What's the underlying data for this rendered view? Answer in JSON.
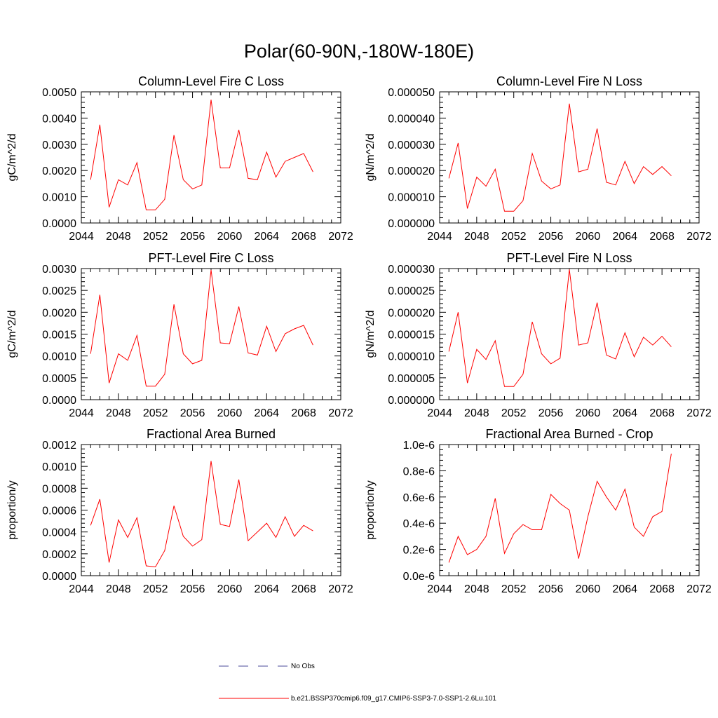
{
  "figure_title": "Polar(60-90N,-180W-180E)",
  "legend": {
    "entries": [
      {
        "label": "No Obs",
        "style": "dashed",
        "color": "#4a4a9a"
      },
      {
        "label": "b.e21.BSSP370cmip6.f09_g17.CMIP6-SSP3-7.0-SSP1-2.6Lu.101",
        "style": "solid",
        "color": "#ff0000"
      }
    ]
  },
  "chart_data": [
    {
      "type": "line",
      "title": "Column-Level Fire C Loss",
      "ylabel": "gC/m^2/d",
      "xlim": [
        2044,
        2072
      ],
      "ylim": [
        0,
        0.005
      ],
      "xticks": [
        "2044",
        "2048",
        "2052",
        "2056",
        "2060",
        "2064",
        "2068",
        "2072"
      ],
      "yticks": [
        "0.0000",
        "0.0010",
        "0.0020",
        "0.0030",
        "0.0040",
        "0.0050"
      ],
      "x": [
        2045,
        2046,
        2047,
        2048,
        2049,
        2050,
        2051,
        2052,
        2053,
        2054,
        2055,
        2056,
        2057,
        2058,
        2059,
        2060,
        2061,
        2062,
        2063,
        2064,
        2065,
        2066,
        2067,
        2068,
        2069
      ],
      "series": [
        {
          "color": "#ff0000",
          "values": [
            0.00165,
            0.00375,
            0.0006,
            0.00165,
            0.00145,
            0.0023,
            0.0005,
            0.0005,
            0.0009,
            0.00335,
            0.00165,
            0.0013,
            0.00145,
            0.0047,
            0.0021,
            0.0021,
            0.00355,
            0.0017,
            0.00165,
            0.0027,
            0.00175,
            0.00235,
            0.0025,
            0.00265,
            0.00195
          ]
        }
      ]
    },
    {
      "type": "line",
      "title": "Column-Level Fire N Loss",
      "ylabel": "gN/m^2/d",
      "xlim": [
        2044,
        2072
      ],
      "ylim": [
        0,
        5e-05
      ],
      "xticks": [
        "2044",
        "2048",
        "2052",
        "2056",
        "2060",
        "2064",
        "2068",
        "2072"
      ],
      "yticks": [
        "0.000000",
        "0.000010",
        "0.000020",
        "0.000030",
        "0.000040",
        "0.000050"
      ],
      "x": [
        2045,
        2046,
        2047,
        2048,
        2049,
        2050,
        2051,
        2052,
        2053,
        2054,
        2055,
        2056,
        2057,
        2058,
        2059,
        2060,
        2061,
        2062,
        2063,
        2064,
        2065,
        2066,
        2067,
        2068,
        2069
      ],
      "series": [
        {
          "color": "#ff0000",
          "values": [
            1.7e-05,
            3.05e-05,
            5.5e-06,
            1.75e-05,
            1.4e-05,
            2.05e-05,
            4.5e-06,
            4.5e-06,
            8.5e-06,
            2.65e-05,
            1.6e-05,
            1.3e-05,
            1.45e-05,
            4.55e-05,
            1.95e-05,
            2.05e-05,
            3.6e-05,
            1.55e-05,
            1.45e-05,
            2.35e-05,
            1.5e-05,
            2.15e-05,
            1.85e-05,
            2.15e-05,
            1.8e-05
          ]
        }
      ]
    },
    {
      "type": "line",
      "title": "PFT-Level Fire C Loss",
      "ylabel": "gC/m^2/d",
      "xlim": [
        2044,
        2072
      ],
      "ylim": [
        0,
        0.003
      ],
      "xticks": [
        "2044",
        "2048",
        "2052",
        "2056",
        "2060",
        "2064",
        "2068",
        "2072"
      ],
      "yticks": [
        "0.0000",
        "0.0005",
        "0.0010",
        "0.0015",
        "0.0020",
        "0.0025",
        "0.0030"
      ],
      "x": [
        2045,
        2046,
        2047,
        2048,
        2049,
        2050,
        2051,
        2052,
        2053,
        2054,
        2055,
        2056,
        2057,
        2058,
        2059,
        2060,
        2061,
        2062,
        2063,
        2064,
        2065,
        2066,
        2067,
        2068,
        2069
      ],
      "series": [
        {
          "color": "#ff0000",
          "values": [
            0.00105,
            0.0024,
            0.00038,
            0.00105,
            0.0009,
            0.00147,
            0.00031,
            0.00031,
            0.00058,
            0.00218,
            0.00105,
            0.00082,
            0.0009,
            0.00297,
            0.0013,
            0.00128,
            0.00213,
            0.00107,
            0.00102,
            0.00168,
            0.0011,
            0.00151,
            0.00162,
            0.0017,
            0.00125
          ]
        }
      ]
    },
    {
      "type": "line",
      "title": "PFT-Level Fire N Loss",
      "ylabel": "gN/m^2/d",
      "xlim": [
        2044,
        2072
      ],
      "ylim": [
        0,
        3e-05
      ],
      "xticks": [
        "2044",
        "2048",
        "2052",
        "2056",
        "2060",
        "2064",
        "2068",
        "2072"
      ],
      "yticks": [
        "0.000000",
        "0.000005",
        "0.000010",
        "0.000015",
        "0.000020",
        "0.000025",
        "0.000030"
      ],
      "x": [
        2045,
        2046,
        2047,
        2048,
        2049,
        2050,
        2051,
        2052,
        2053,
        2054,
        2055,
        2056,
        2057,
        2058,
        2059,
        2060,
        2061,
        2062,
        2063,
        2064,
        2065,
        2066,
        2067,
        2068,
        2069
      ],
      "series": [
        {
          "color": "#ff0000",
          "values": [
            1.1e-05,
            2e-05,
            3.8e-06,
            1.15e-05,
            9.2e-06,
            1.35e-05,
            3e-06,
            3e-06,
            5.8e-06,
            1.78e-05,
            1.05e-05,
            8.2e-06,
            9.5e-06,
            2.98e-05,
            1.25e-05,
            1.3e-05,
            2.22e-05,
            1.02e-05,
            9.3e-06,
            1.53e-05,
            9.8e-06,
            1.43e-05,
            1.25e-05,
            1.45e-05,
            1.21e-05
          ]
        }
      ]
    },
    {
      "type": "line",
      "title": "Fractional Area Burned",
      "ylabel": "proportion/y",
      "xlim": [
        2044,
        2072
      ],
      "ylim": [
        0,
        0.0012
      ],
      "xticks": [
        "2044",
        "2048",
        "2052",
        "2056",
        "2060",
        "2064",
        "2068",
        "2072"
      ],
      "yticks": [
        "0.0000",
        "0.0002",
        "0.0004",
        "0.0006",
        "0.0008",
        "0.0010",
        "0.0012"
      ],
      "x": [
        2045,
        2046,
        2047,
        2048,
        2049,
        2050,
        2051,
        2052,
        2053,
        2054,
        2055,
        2056,
        2057,
        2058,
        2059,
        2060,
        2061,
        2062,
        2063,
        2064,
        2065,
        2066,
        2067,
        2068,
        2069
      ],
      "series": [
        {
          "color": "#ff0000",
          "values": [
            0.00046,
            0.0007,
            0.00012,
            0.00051,
            0.00035,
            0.00053,
            9e-05,
            8e-05,
            0.00023,
            0.00064,
            0.00036,
            0.00027,
            0.00033,
            0.00105,
            0.00047,
            0.00045,
            0.00088,
            0.00032,
            0.0004,
            0.00048,
            0.00035,
            0.00054,
            0.00036,
            0.00046,
            0.00041
          ]
        }
      ]
    },
    {
      "type": "line",
      "title": "Fractional Area Burned - Crop",
      "ylabel": "proportion/y",
      "xlim": [
        2044,
        2072
      ],
      "ylim": [
        0,
        1e-06
      ],
      "xticks": [
        "2044",
        "2048",
        "2052",
        "2056",
        "2060",
        "2064",
        "2068",
        "2072"
      ],
      "yticks": [
        "0.0e-6",
        "0.2e-6",
        "0.4e-6",
        "0.6e-6",
        "0.8e-6",
        "1.0e-6"
      ],
      "x": [
        2045,
        2046,
        2047,
        2048,
        2049,
        2050,
        2051,
        2052,
        2053,
        2054,
        2055,
        2056,
        2057,
        2058,
        2059,
        2060,
        2061,
        2062,
        2063,
        2064,
        2065,
        2066,
        2067,
        2068,
        2069
      ],
      "series": [
        {
          "color": "#ff0000",
          "values": [
            1e-07,
            3e-07,
            1.6e-07,
            2e-07,
            3e-07,
            5.9e-07,
            1.7e-07,
            3.2e-07,
            3.9e-07,
            3.5e-07,
            3.5e-07,
            6.2e-07,
            5.5e-07,
            5e-07,
            1.3e-07,
            4.5e-07,
            7.2e-07,
            6e-07,
            5e-07,
            6.6e-07,
            3.7e-07,
            3e-07,
            4.5e-07,
            4.9e-07,
            9.3e-07
          ]
        }
      ]
    }
  ]
}
